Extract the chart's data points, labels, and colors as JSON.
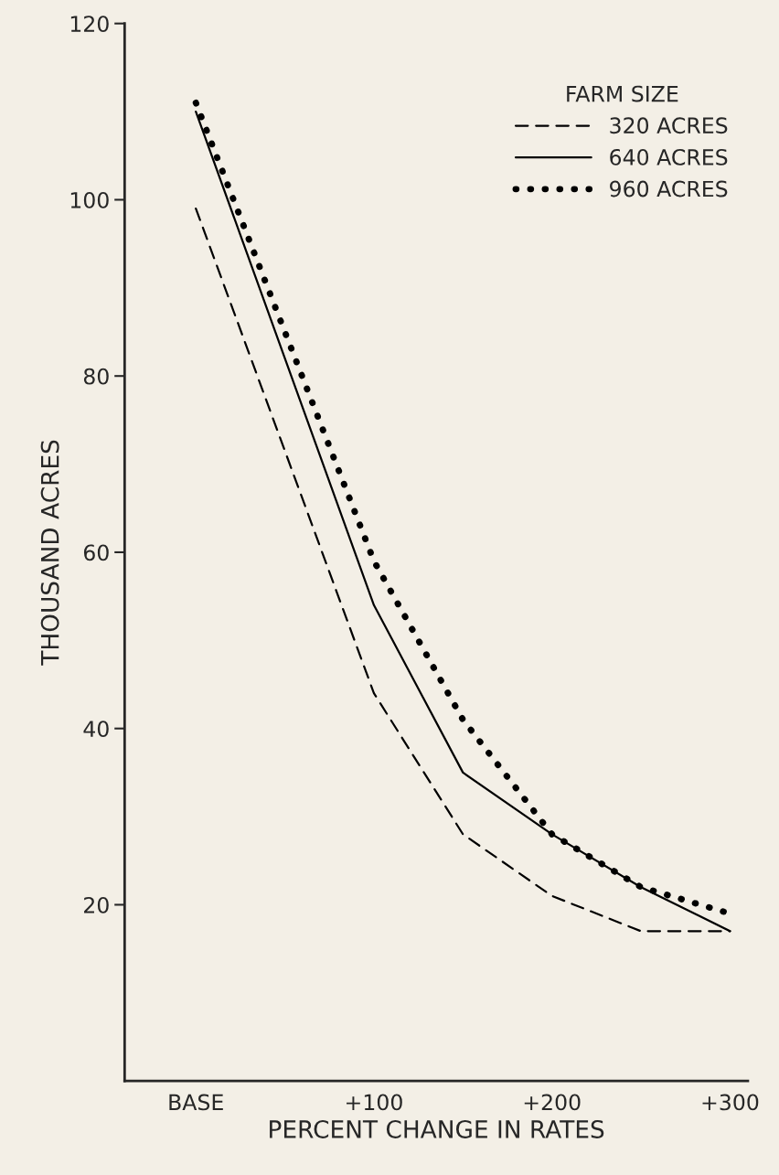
{
  "chart_data": {
    "type": "line",
    "xlabel": "PERCENT CHANGE IN RATES",
    "ylabel": "THOUSAND ACRES",
    "legend_title": "FARM SIZE",
    "legend": "top right",
    "grid": false,
    "x": [
      0,
      100,
      150,
      200,
      250,
      300
    ],
    "xlim": [
      -40,
      310
    ],
    "xticks": [
      {
        "value": 0,
        "label": "BASE"
      },
      {
        "value": 100,
        "label": "+100"
      },
      {
        "value": 200,
        "label": "+200"
      },
      {
        "value": 300,
        "label": "+300"
      }
    ],
    "ylim": [
      0,
      120
    ],
    "yticks": [
      20,
      40,
      60,
      80,
      100,
      120
    ],
    "series": [
      {
        "name": "320 ACRES",
        "color": "#000000",
        "line_style": "dashed",
        "values": [
          99,
          44,
          28,
          21,
          17,
          17
        ]
      },
      {
        "name": "640 ACRES",
        "color": "#000000",
        "line_style": "solid",
        "values": [
          110,
          54,
          35,
          28,
          22,
          17
        ]
      },
      {
        "name": "960 ACRES",
        "color": "#000000",
        "line_style": "dotted",
        "values": [
          111,
          59,
          41,
          28,
          22,
          19
        ]
      }
    ]
  }
}
